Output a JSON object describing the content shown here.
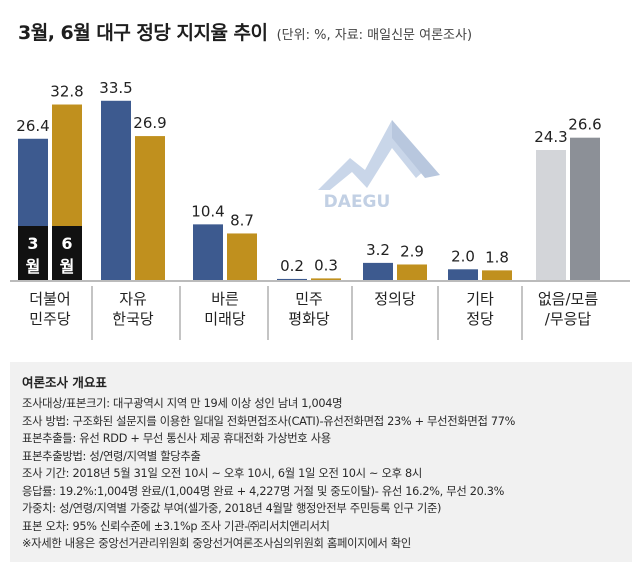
{
  "title": "3월, 6월 대구 정당 지지율 추이",
  "subtitle": "(단위: %, 자료: 매일신문 여론조사)",
  "logo_text": "DAEGU",
  "colors": {
    "march": "#3d5a8f",
    "june": "#c0901e",
    "other_march": "#d3d5d9",
    "other_june": "#8c9097",
    "legend_bg": "#111111"
  },
  "chart_data": {
    "type": "bar",
    "categories": [
      "더불어\n민주당",
      "자유\n한국당",
      "바른\n미래당",
      "민주\n평화당",
      "정의당",
      "기타\n정당",
      "없음/모름\n/무응답"
    ],
    "series": [
      {
        "name": "3월",
        "values": [
          26.4,
          33.5,
          10.4,
          0.2,
          3.2,
          2.0,
          24.3
        ]
      },
      {
        "name": "6월",
        "values": [
          32.8,
          26.9,
          8.7,
          0.3,
          2.9,
          1.8,
          26.6
        ]
      }
    ],
    "value_labels": [
      [
        "26.4",
        "33.5",
        "10.4",
        "0.2",
        "3.2",
        "2.0",
        "24.3"
      ],
      [
        "32.8",
        "26.9",
        "8.7",
        "0.3",
        "2.9",
        "1.8",
        "26.6"
      ]
    ],
    "legend": [
      [
        "3",
        "월"
      ],
      [
        "6",
        "월"
      ]
    ],
    "ylim": [
      0,
      35
    ],
    "grid": false,
    "title": "3월, 6월 대구 정당 지지율 추이",
    "xlabel": "",
    "ylabel": ""
  },
  "info": {
    "title": "여론조사 개요표",
    "lines": [
      "조사대상/표본크기: 대구광역시 지역 만 19세 이상 성인 남녀 1,004명",
      "조사 방법: 구조화된 설문지를 이용한 일대일 전화면접조사(CATI)-유선전화면접 23% + 무선전화면접 77%",
      "표본추출틀: 유선 RDD + 무선 통신사 제공 휴대전화 가상번호 사용",
      "표본추출방법: 성/연령/지역별 할당추출",
      "조사 기간: 2018년 5월 31일 오전 10시 ~ 오후 10시, 6월 1일 오전 10시 ~ 오후 8시",
      "응답률: 19.2%:1,004명 완료/(1,004명 완료 + 4,227명 거절 및 중도이탈)- 유선 16.2%, 무선 20.3%",
      "가중치: 성/연령/지역별 가중값 부여(셀가중, 2018년 4월말 행정안전부 주민등록 인구 기준)",
      "표본 오차: 95% 신뢰수준에 ±3.1%p 조사 기관-㈜리서치앤리서치",
      "※자세한 내용은 중앙선거관리위원회 중앙선거여론조사심의위원회 홈페이지에서 확인"
    ]
  }
}
